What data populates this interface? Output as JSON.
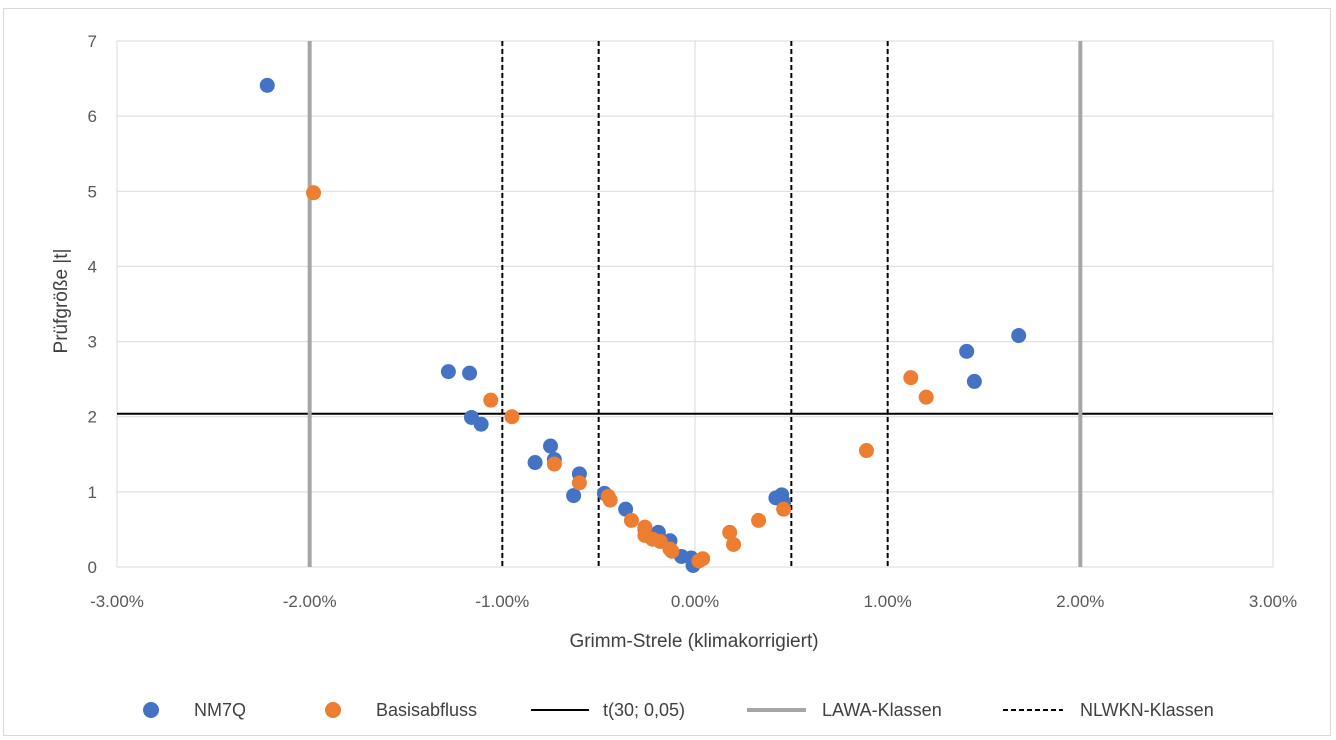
{
  "chart_data": {
    "type": "scatter",
    "title": "",
    "xlabel": "Grimm-Strele (klimakorrigiert)",
    "ylabel": "Prüfgröße |t|",
    "xlim": [
      -3.0,
      3.0
    ],
    "ylim": [
      0,
      7
    ],
    "x_ticks": [
      -3,
      -2,
      -1,
      0,
      1,
      2,
      3
    ],
    "x_tick_labels": [
      "-3.00%",
      "-2.00%",
      "-1.00%",
      "0.00%",
      "1.00%",
      "2.00%",
      "3.00%"
    ],
    "y_ticks": [
      0,
      1,
      2,
      3,
      4,
      5,
      6,
      7
    ],
    "y_tick_labels": [
      "0",
      "1",
      "2",
      "3",
      "4",
      "5",
      "6",
      "7"
    ],
    "grid": true,
    "legend_position": "bottom",
    "series": [
      {
        "name": "NM7Q",
        "color": "#4472C4",
        "points": [
          [
            -2.22,
            6.41
          ],
          [
            -1.28,
            2.6
          ],
          [
            -1.17,
            2.58
          ],
          [
            -1.16,
            1.99
          ],
          [
            -1.11,
            1.9
          ],
          [
            -0.83,
            1.39
          ],
          [
            -0.75,
            1.61
          ],
          [
            -0.73,
            1.43
          ],
          [
            -0.63,
            0.95
          ],
          [
            -0.6,
            1.24
          ],
          [
            -0.47,
            0.98
          ],
          [
            -0.36,
            0.77
          ],
          [
            -0.26,
            0.5
          ],
          [
            -0.19,
            0.46
          ],
          [
            -0.13,
            0.35
          ],
          [
            -0.07,
            0.14
          ],
          [
            -0.02,
            0.12
          ],
          [
            -0.01,
            0.02
          ],
          [
            0.42,
            0.92
          ],
          [
            0.45,
            0.96
          ],
          [
            0.46,
            0.86
          ],
          [
            1.41,
            2.87
          ],
          [
            1.45,
            2.47
          ],
          [
            1.68,
            3.08
          ]
        ]
      },
      {
        "name": "Basisabfluss",
        "color": "#ED7D31",
        "points": [
          [
            -1.98,
            4.98
          ],
          [
            -1.06,
            2.22
          ],
          [
            -0.95,
            2.0
          ],
          [
            -0.73,
            1.37
          ],
          [
            -0.6,
            1.12
          ],
          [
            -0.45,
            0.94
          ],
          [
            -0.44,
            0.89
          ],
          [
            -0.33,
            0.62
          ],
          [
            -0.26,
            0.53
          ],
          [
            -0.26,
            0.42
          ],
          [
            -0.22,
            0.37
          ],
          [
            -0.18,
            0.34
          ],
          [
            -0.13,
            0.24
          ],
          [
            -0.12,
            0.21
          ],
          [
            0.02,
            0.08
          ],
          [
            0.04,
            0.11
          ],
          [
            0.18,
            0.46
          ],
          [
            0.2,
            0.3
          ],
          [
            0.33,
            0.62
          ],
          [
            0.46,
            0.77
          ],
          [
            0.89,
            1.55
          ],
          [
            1.12,
            2.52
          ],
          [
            1.2,
            2.26
          ]
        ]
      }
    ],
    "reference_lines": [
      {
        "name": "t(30; 0,05)",
        "orientation": "horizontal",
        "values": [
          2.04
        ],
        "color": "#000000",
        "style": "solid"
      },
      {
        "name": "LAWA-Klassen",
        "orientation": "vertical",
        "values": [
          -2,
          2
        ],
        "color": "#a6a6a6",
        "style": "solid"
      },
      {
        "name": "NLWKN-Klassen",
        "orientation": "vertical",
        "values": [
          -1,
          -0.5,
          0.5,
          1
        ],
        "color": "#000000",
        "style": "dashed"
      }
    ]
  }
}
